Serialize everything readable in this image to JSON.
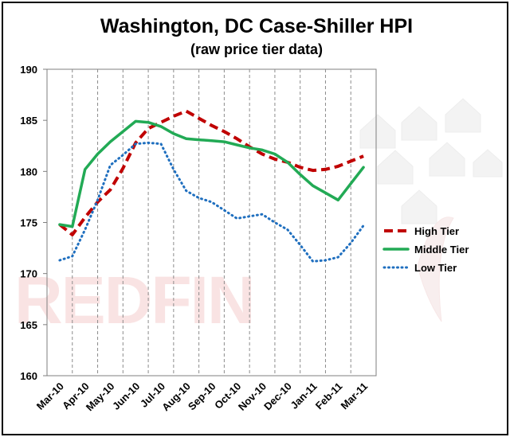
{
  "chart_data": {
    "type": "line",
    "title": "Washington, DC Case-Shiller HPI",
    "subtitle": "(raw price tier data)",
    "watermark": "REDFIN",
    "categories": [
      "Mar-10",
      "Apr-10",
      "May-10",
      "Jun-10",
      "Jul-10",
      "Aug-10",
      "Sep-10",
      "Oct-10",
      "Nov-10",
      "Dec-10",
      "Jan-11",
      "Feb-11",
      "Mar-11"
    ],
    "x": [
      "Mar-10",
      "Apr-10",
      "May-10",
      "Jun-10",
      "Jul-10",
      "Aug-10",
      "Sep-10",
      "Oct-10",
      "Nov-10",
      "Dec-10",
      "Jan-11",
      "Feb-11",
      "Mar-11"
    ],
    "ylim": [
      160,
      190
    ],
    "yticks": [
      "160",
      "165",
      "170",
      "175",
      "180",
      "185",
      "190"
    ],
    "xlabel": "",
    "ylabel": "",
    "grid": {
      "x": true,
      "y": false
    },
    "legend_position": "right",
    "series": [
      {
        "name": "High Tier",
        "color": "#c00000",
        "style": "dashed",
        "points": [
          [
            0,
            174.8
          ],
          [
            0.5,
            173.8
          ],
          [
            1,
            175.5
          ],
          [
            1.5,
            177.0
          ],
          [
            2,
            178.2
          ],
          [
            2.5,
            180.3
          ],
          [
            3,
            182.8
          ],
          [
            3.5,
            184.2
          ],
          [
            4,
            184.8
          ],
          [
            4.5,
            185.4
          ],
          [
            5,
            185.9
          ],
          [
            5.5,
            185.2
          ],
          [
            6,
            184.5
          ],
          [
            6.5,
            183.9
          ],
          [
            7,
            183.2
          ],
          [
            7.5,
            182.4
          ],
          [
            8,
            181.7
          ],
          [
            8.5,
            181.2
          ],
          [
            9,
            180.9
          ],
          [
            9.5,
            180.4
          ],
          [
            10,
            180.1
          ],
          [
            10.5,
            180.2
          ],
          [
            11,
            180.5
          ],
          [
            11.5,
            181.0
          ],
          [
            12,
            181.5
          ]
        ]
      },
      {
        "name": "Middle Tier",
        "color": "#22aa55",
        "style": "solid",
        "points": [
          [
            0,
            174.8
          ],
          [
            0.5,
            174.6
          ],
          [
            1,
            180.2
          ],
          [
            1.5,
            181.7
          ],
          [
            2,
            182.9
          ],
          [
            2.5,
            183.9
          ],
          [
            3,
            184.9
          ],
          [
            3.5,
            184.8
          ],
          [
            4,
            184.4
          ],
          [
            4.5,
            183.7
          ],
          [
            5,
            183.2
          ],
          [
            5.5,
            183.1
          ],
          [
            6,
            183.0
          ],
          [
            6.5,
            182.9
          ],
          [
            7,
            182.6
          ],
          [
            7.5,
            182.3
          ],
          [
            8,
            182.1
          ],
          [
            8.5,
            181.7
          ],
          [
            9,
            180.9
          ],
          [
            9.5,
            179.7
          ],
          [
            10,
            178.6
          ],
          [
            10.5,
            177.9
          ],
          [
            11,
            177.2
          ],
          [
            11.5,
            178.8
          ],
          [
            12,
            180.4
          ]
        ]
      },
      {
        "name": "Low Tier",
        "color": "#1f6fbf",
        "style": "dotted",
        "points": [
          [
            0,
            171.3
          ],
          [
            0.5,
            171.7
          ],
          [
            1,
            174.3
          ],
          [
            1.5,
            177.2
          ],
          [
            2,
            180.6
          ],
          [
            2.5,
            181.6
          ],
          [
            3,
            182.7
          ],
          [
            3.5,
            182.8
          ],
          [
            4,
            182.7
          ],
          [
            4.5,
            180.2
          ],
          [
            5,
            178.1
          ],
          [
            5.5,
            177.4
          ],
          [
            6,
            177.0
          ],
          [
            6.5,
            176.2
          ],
          [
            7,
            175.4
          ],
          [
            7.5,
            175.6
          ],
          [
            8,
            175.8
          ],
          [
            8.5,
            175.0
          ],
          [
            9,
            174.3
          ],
          [
            9.5,
            172.8
          ],
          [
            10,
            171.2
          ],
          [
            10.5,
            171.3
          ],
          [
            11,
            171.6
          ],
          [
            11.5,
            173.0
          ],
          [
            12,
            174.7
          ]
        ]
      }
    ]
  }
}
